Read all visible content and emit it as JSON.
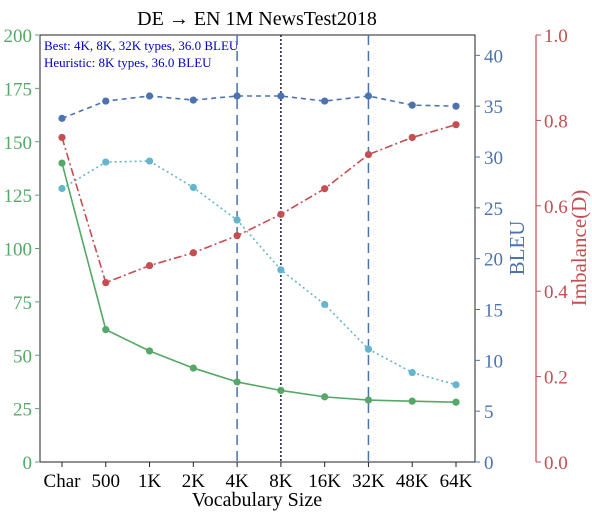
{
  "chart_data": {
    "type": "line",
    "title": "DE → EN 1M NewsTest2018",
    "xlabel": "Vocabulary Size",
    "categories": [
      "Char",
      "500",
      "1K",
      "2K",
      "4K",
      "8K",
      "16K",
      "32K",
      "48K",
      "64K"
    ],
    "annotation": {
      "best": "Best: 4K, 8K, 32K types, 36.0 BLEU",
      "heuristic": "Heuristic: 8K types, 36.0 BLEU"
    },
    "axes": {
      "left": {
        "label": "",
        "ylim": [
          0,
          200
        ],
        "ticks": [
          "0",
          "25",
          "50",
          "75",
          "100",
          "125",
          "150",
          "175",
          "200"
        ],
        "color": "#55a868"
      },
      "bleu": {
        "label": "BLEU",
        "ylim": [
          0,
          42
        ],
        "ticks": [
          "0",
          "5",
          "10",
          "15",
          "20",
          "25",
          "30",
          "35",
          "40"
        ],
        "color": "#4c72b0"
      },
      "imbalance": {
        "label": "Imbalance(D)",
        "ylim": [
          0,
          1.0
        ],
        "ticks": [
          "0.0",
          "0.2",
          "0.4",
          "0.6",
          "0.8",
          "1.0"
        ],
        "color": "#c44e52"
      }
    },
    "series": [
      {
        "axis": "bleu",
        "color": "#4c72b0",
        "dash": "5,4",
        "values": [
          33.8,
          35.5,
          36.0,
          35.6,
          36.0,
          36.0,
          35.5,
          36.0,
          35.1,
          35.0
        ]
      },
      {
        "axis": "bleu",
        "color": "#64b5cd",
        "dash": "2,3",
        "values": [
          26.9,
          29.5,
          29.6,
          27.0,
          23.8,
          18.9,
          15.5,
          11.1,
          8.8,
          7.6
        ]
      },
      {
        "axis": "imbalance",
        "color": "#c44e52",
        "dash": "8,3,2,3",
        "values": [
          0.76,
          0.42,
          0.46,
          0.49,
          0.53,
          0.58,
          0.64,
          0.72,
          0.76,
          0.79
        ]
      },
      {
        "axis": "left",
        "color": "#55a868",
        "dash": "",
        "values": [
          140,
          62,
          52,
          44,
          37.5,
          33.5,
          30.5,
          29,
          28.5,
          28
        ]
      }
    ],
    "vlines": [
      {
        "category": "4K",
        "color": "#4c72b0",
        "dash": "10,6"
      },
      {
        "category": "8K",
        "color": "#1a1a4a",
        "dash": "2,2"
      },
      {
        "category": "32K",
        "color": "#4c72b0",
        "dash": "10,6"
      }
    ],
    "grid": false
  }
}
